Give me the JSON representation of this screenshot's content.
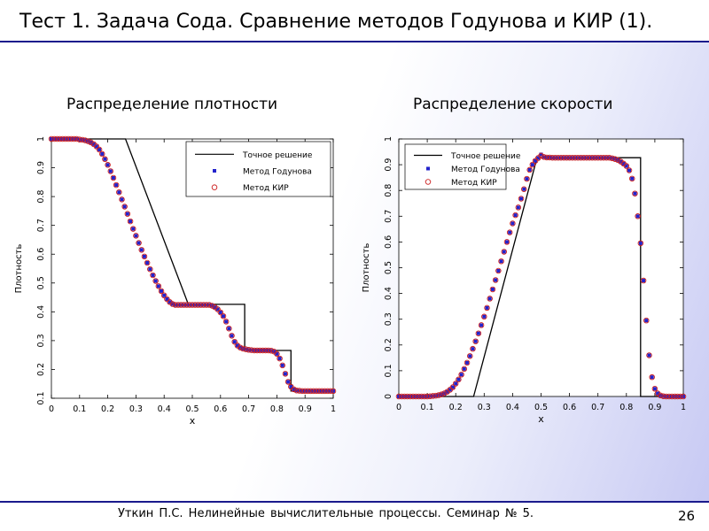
{
  "slide": {
    "title": "Тест 1. Задача Сода. Сравнение методов Годунова и КИР (1).",
    "footer": "Уткин П.С. Нелинейные  вычислительные  процессы. Семинар  №  5.",
    "page_number": "26"
  },
  "colors": {
    "exact": "#000000",
    "godunov": "#2323cc",
    "kir": "#cc1f1f",
    "rule": "#1a1a8c"
  },
  "chart_data": [
    {
      "type": "line",
      "heading": "Распределение плотности",
      "xlabel": "x",
      "ylabel": "Плотность",
      "xlim": [
        0,
        1
      ],
      "ylim": [
        0.1,
        1
      ],
      "xticks": [
        0,
        0.1,
        0.2,
        0.3,
        0.4,
        0.5,
        0.6,
        0.7,
        0.8,
        0.9,
        1
      ],
      "yticks": [
        0.1,
        0.2,
        0.3,
        0.4,
        0.5,
        0.6,
        0.7,
        0.8,
        0.9,
        1
      ],
      "legend_position": "top-right",
      "series": [
        {
          "name": "Точное решение",
          "style": "line",
          "x": [
            0,
            0.263,
            0.486,
            0.686,
            0.686,
            0.85,
            0.85,
            1
          ],
          "y": [
            1,
            1,
            0.426,
            0.426,
            0.266,
            0.266,
            0.125,
            0.125
          ]
        },
        {
          "name": "Метод Годунова",
          "style": "square",
          "x": [
            0.0,
            0.01,
            0.02,
            0.03,
            0.04,
            0.05,
            0.06,
            0.07,
            0.08,
            0.09,
            0.1,
            0.11,
            0.12,
            0.13,
            0.14,
            0.15,
            0.16,
            0.17,
            0.18,
            0.19,
            0.2,
            0.21,
            0.22,
            0.23,
            0.24,
            0.25,
            0.26,
            0.27,
            0.28,
            0.29,
            0.3,
            0.31,
            0.32,
            0.33,
            0.34,
            0.35,
            0.36,
            0.37,
            0.38,
            0.39,
            0.4,
            0.41,
            0.42,
            0.43,
            0.44,
            0.45,
            0.46,
            0.47,
            0.48,
            0.49,
            0.5,
            0.51,
            0.52,
            0.53,
            0.54,
            0.55,
            0.56,
            0.57,
            0.58,
            0.59,
            0.6,
            0.61,
            0.62,
            0.63,
            0.64,
            0.65,
            0.66,
            0.67,
            0.68,
            0.69,
            0.7,
            0.71,
            0.72,
            0.73,
            0.74,
            0.75,
            0.76,
            0.77,
            0.78,
            0.79,
            0.8,
            0.81,
            0.82,
            0.83,
            0.84,
            0.85,
            0.86,
            0.87,
            0.88,
            0.89,
            0.9,
            0.91,
            0.92,
            0.93,
            0.94,
            0.95,
            0.96,
            0.97,
            0.98,
            0.99,
            1.0
          ],
          "y": [
            1.0,
            1.0,
            1.0,
            1.0,
            1.0,
            1.0,
            1.0,
            1.0,
            1.0,
            1.0,
            0.998,
            0.997,
            0.995,
            0.992,
            0.988,
            0.982,
            0.974,
            0.963,
            0.948,
            0.93,
            0.91,
            0.888,
            0.865,
            0.84,
            0.815,
            0.79,
            0.765,
            0.74,
            0.714,
            0.688,
            0.664,
            0.639,
            0.615,
            0.592,
            0.57,
            0.548,
            0.527,
            0.507,
            0.489,
            0.472,
            0.457,
            0.444,
            0.434,
            0.427,
            0.424,
            0.424,
            0.424,
            0.424,
            0.424,
            0.424,
            0.424,
            0.424,
            0.424,
            0.424,
            0.424,
            0.424,
            0.424,
            0.421,
            0.416,
            0.409,
            0.398,
            0.385,
            0.366,
            0.342,
            0.317,
            0.296,
            0.283,
            0.276,
            0.272,
            0.27,
            0.268,
            0.267,
            0.266,
            0.266,
            0.266,
            0.266,
            0.266,
            0.266,
            0.265,
            0.262,
            0.254,
            0.238,
            0.214,
            0.185,
            0.157,
            0.14,
            0.131,
            0.127,
            0.126,
            0.125,
            0.125,
            0.125,
            0.125,
            0.125,
            0.125,
            0.125,
            0.125,
            0.125,
            0.125,
            0.125,
            0.125
          ]
        },
        {
          "name": "Метод КИР",
          "style": "circle",
          "x": [
            0.0,
            0.01,
            0.02,
            0.03,
            0.04,
            0.05,
            0.06,
            0.07,
            0.08,
            0.09,
            0.1,
            0.11,
            0.12,
            0.13,
            0.14,
            0.15,
            0.16,
            0.17,
            0.18,
            0.19,
            0.2,
            0.21,
            0.22,
            0.23,
            0.24,
            0.25,
            0.26,
            0.27,
            0.28,
            0.29,
            0.3,
            0.31,
            0.32,
            0.33,
            0.34,
            0.35,
            0.36,
            0.37,
            0.38,
            0.39,
            0.4,
            0.41,
            0.42,
            0.43,
            0.44,
            0.45,
            0.46,
            0.47,
            0.48,
            0.49,
            0.5,
            0.51,
            0.52,
            0.53,
            0.54,
            0.55,
            0.56,
            0.57,
            0.58,
            0.59,
            0.6,
            0.61,
            0.62,
            0.63,
            0.64,
            0.65,
            0.66,
            0.67,
            0.68,
            0.69,
            0.7,
            0.71,
            0.72,
            0.73,
            0.74,
            0.75,
            0.76,
            0.77,
            0.78,
            0.79,
            0.8,
            0.81,
            0.82,
            0.83,
            0.84,
            0.85,
            0.86,
            0.87,
            0.88,
            0.89,
            0.9,
            0.91,
            0.92,
            0.93,
            0.94,
            0.95,
            0.96,
            0.97,
            0.98,
            0.99,
            1.0
          ],
          "y": [
            1.0,
            1.0,
            1.0,
            1.0,
            1.0,
            1.0,
            1.0,
            1.0,
            1.0,
            1.0,
            0.998,
            0.997,
            0.995,
            0.992,
            0.988,
            0.982,
            0.974,
            0.963,
            0.948,
            0.93,
            0.91,
            0.888,
            0.865,
            0.84,
            0.815,
            0.79,
            0.765,
            0.74,
            0.714,
            0.688,
            0.664,
            0.639,
            0.615,
            0.592,
            0.57,
            0.548,
            0.527,
            0.507,
            0.489,
            0.472,
            0.457,
            0.444,
            0.434,
            0.427,
            0.424,
            0.424,
            0.424,
            0.424,
            0.424,
            0.424,
            0.424,
            0.424,
            0.424,
            0.424,
            0.424,
            0.424,
            0.424,
            0.421,
            0.416,
            0.409,
            0.398,
            0.385,
            0.366,
            0.342,
            0.317,
            0.296,
            0.283,
            0.276,
            0.272,
            0.27,
            0.268,
            0.267,
            0.266,
            0.266,
            0.266,
            0.266,
            0.266,
            0.266,
            0.265,
            0.262,
            0.254,
            0.238,
            0.214,
            0.185,
            0.157,
            0.14,
            0.131,
            0.127,
            0.126,
            0.125,
            0.125,
            0.125,
            0.125,
            0.125,
            0.125,
            0.125,
            0.125,
            0.125,
            0.125,
            0.125,
            0.125
          ]
        }
      ]
    },
    {
      "type": "line",
      "heading": "Распределение скорости",
      "xlabel": "x",
      "ylabel": "Плотность",
      "xlim": [
        0,
        1
      ],
      "ylim": [
        0,
        1
      ],
      "xticks": [
        0,
        0.1,
        0.2,
        0.3,
        0.4,
        0.5,
        0.6,
        0.7,
        0.8,
        0.9,
        1
      ],
      "yticks": [
        0,
        0.1,
        0.2,
        0.3,
        0.4,
        0.5,
        0.6,
        0.7,
        0.8,
        0.9,
        1
      ],
      "legend_position": "top-left",
      "series": [
        {
          "name": "Точное решение",
          "style": "line",
          "x": [
            0,
            0.263,
            0.486,
            0.85,
            0.85,
            1
          ],
          "y": [
            0,
            0,
            0.927,
            0.927,
            0,
            0
          ]
        },
        {
          "name": "Метод Годунова",
          "style": "square",
          "x": [
            0.0,
            0.01,
            0.02,
            0.03,
            0.04,
            0.05,
            0.06,
            0.07,
            0.08,
            0.09,
            0.1,
            0.11,
            0.12,
            0.13,
            0.14,
            0.15,
            0.16,
            0.17,
            0.18,
            0.19,
            0.2,
            0.21,
            0.22,
            0.23,
            0.24,
            0.25,
            0.26,
            0.27,
            0.28,
            0.29,
            0.3,
            0.31,
            0.32,
            0.33,
            0.34,
            0.35,
            0.36,
            0.37,
            0.38,
            0.39,
            0.4,
            0.41,
            0.42,
            0.43,
            0.44,
            0.45,
            0.46,
            0.47,
            0.48,
            0.49,
            0.5,
            0.51,
            0.52,
            0.53,
            0.54,
            0.55,
            0.56,
            0.57,
            0.58,
            0.59,
            0.6,
            0.61,
            0.62,
            0.63,
            0.64,
            0.65,
            0.66,
            0.67,
            0.68,
            0.69,
            0.7,
            0.71,
            0.72,
            0.73,
            0.74,
            0.75,
            0.76,
            0.77,
            0.78,
            0.79,
            0.8,
            0.81,
            0.82,
            0.83,
            0.84,
            0.85,
            0.86,
            0.87,
            0.88,
            0.89,
            0.9,
            0.91,
            0.92,
            0.93,
            0.94,
            0.95,
            0.96,
            0.97,
            0.98,
            0.99,
            1.0
          ],
          "y": [
            0.0,
            0.0,
            0.0,
            0.0,
            0.0,
            0.0,
            0.0,
            0.0,
            0.0,
            0.0,
            0.0,
            0.001,
            0.002,
            0.003,
            0.005,
            0.008,
            0.012,
            0.018,
            0.026,
            0.036,
            0.05,
            0.066,
            0.085,
            0.107,
            0.131,
            0.157,
            0.185,
            0.214,
            0.245,
            0.277,
            0.31,
            0.344,
            0.38,
            0.416,
            0.452,
            0.488,
            0.525,
            0.562,
            0.6,
            0.637,
            0.672,
            0.704,
            0.734,
            0.768,
            0.805,
            0.845,
            0.88,
            0.9,
            0.915,
            0.926,
            0.94,
            0.93,
            0.928,
            0.928,
            0.927,
            0.927,
            0.927,
            0.927,
            0.927,
            0.927,
            0.927,
            0.927,
            0.927,
            0.927,
            0.927,
            0.927,
            0.927,
            0.927,
            0.927,
            0.927,
            0.927,
            0.927,
            0.927,
            0.927,
            0.927,
            0.925,
            0.922,
            0.918,
            0.912,
            0.904,
            0.895,
            0.878,
            0.846,
            0.788,
            0.7,
            0.595,
            0.45,
            0.295,
            0.16,
            0.075,
            0.03,
            0.012,
            0.004,
            0.001,
            0.0,
            0.0,
            0.0,
            0.0,
            0.0,
            0.0,
            0.0
          ]
        },
        {
          "name": "Метод КИР",
          "style": "circle",
          "x": [
            0.0,
            0.01,
            0.02,
            0.03,
            0.04,
            0.05,
            0.06,
            0.07,
            0.08,
            0.09,
            0.1,
            0.11,
            0.12,
            0.13,
            0.14,
            0.15,
            0.16,
            0.17,
            0.18,
            0.19,
            0.2,
            0.21,
            0.22,
            0.23,
            0.24,
            0.25,
            0.26,
            0.27,
            0.28,
            0.29,
            0.3,
            0.31,
            0.32,
            0.33,
            0.34,
            0.35,
            0.36,
            0.37,
            0.38,
            0.39,
            0.4,
            0.41,
            0.42,
            0.43,
            0.44,
            0.45,
            0.46,
            0.47,
            0.48,
            0.49,
            0.5,
            0.51,
            0.52,
            0.53,
            0.54,
            0.55,
            0.56,
            0.57,
            0.58,
            0.59,
            0.6,
            0.61,
            0.62,
            0.63,
            0.64,
            0.65,
            0.66,
            0.67,
            0.68,
            0.69,
            0.7,
            0.71,
            0.72,
            0.73,
            0.74,
            0.75,
            0.76,
            0.77,
            0.78,
            0.79,
            0.8,
            0.81,
            0.82,
            0.83,
            0.84,
            0.85,
            0.86,
            0.87,
            0.88,
            0.89,
            0.9,
            0.91,
            0.92,
            0.93,
            0.94,
            0.95,
            0.96,
            0.97,
            0.98,
            0.99,
            1.0
          ],
          "y": [
            0.0,
            0.0,
            0.0,
            0.0,
            0.0,
            0.0,
            0.0,
            0.0,
            0.0,
            0.0,
            0.0,
            0.001,
            0.002,
            0.003,
            0.005,
            0.008,
            0.012,
            0.018,
            0.026,
            0.036,
            0.05,
            0.066,
            0.085,
            0.107,
            0.131,
            0.157,
            0.185,
            0.214,
            0.245,
            0.277,
            0.31,
            0.344,
            0.38,
            0.416,
            0.452,
            0.488,
            0.525,
            0.562,
            0.6,
            0.637,
            0.672,
            0.704,
            0.734,
            0.768,
            0.805,
            0.845,
            0.88,
            0.9,
            0.915,
            0.926,
            0.935,
            0.93,
            0.928,
            0.928,
            0.927,
            0.927,
            0.927,
            0.927,
            0.927,
            0.927,
            0.927,
            0.927,
            0.927,
            0.927,
            0.927,
            0.927,
            0.927,
            0.927,
            0.927,
            0.927,
            0.927,
            0.927,
            0.927,
            0.927,
            0.927,
            0.925,
            0.922,
            0.918,
            0.912,
            0.904,
            0.895,
            0.878,
            0.846,
            0.788,
            0.7,
            0.595,
            0.45,
            0.295,
            0.16,
            0.075,
            0.03,
            0.012,
            0.004,
            0.001,
            0.0,
            0.0,
            0.0,
            0.0,
            0.0,
            0.0,
            0.0
          ]
        }
      ]
    }
  ]
}
